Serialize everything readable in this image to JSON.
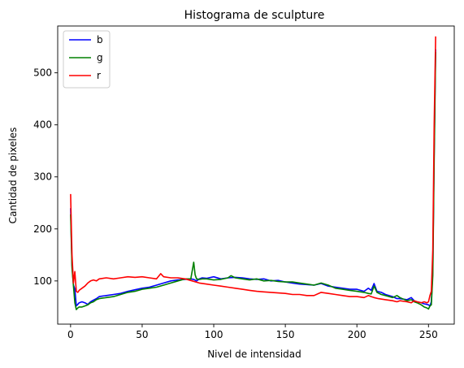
{
  "chart_data": {
    "type": "line",
    "title": "Histograma de sculpture",
    "xlabel": "Nivel de intensidad",
    "ylabel": "Cantidad de pixeles",
    "xlim": [
      -9,
      268
    ],
    "ylim": [
      17,
      590
    ],
    "xticks": [
      0,
      50,
      100,
      150,
      200,
      250
    ],
    "yticks": [
      100,
      200,
      300,
      400,
      500
    ],
    "grid": false,
    "legend_position": "top-left",
    "series": [
      {
        "name": "b",
        "color": "#0000ff",
        "points": [
          [
            0,
            240
          ],
          [
            1,
            130
          ],
          [
            2,
            92
          ],
          [
            3,
            85
          ],
          [
            4,
            52
          ],
          [
            5,
            55
          ],
          [
            6,
            58
          ],
          [
            8,
            60
          ],
          [
            10,
            58
          ],
          [
            12,
            55
          ],
          [
            14,
            60
          ],
          [
            16,
            63
          ],
          [
            18,
            66
          ],
          [
            20,
            70
          ],
          [
            25,
            72
          ],
          [
            30,
            74
          ],
          [
            35,
            76
          ],
          [
            40,
            80
          ],
          [
            45,
            83
          ],
          [
            50,
            86
          ],
          [
            55,
            88
          ],
          [
            60,
            92
          ],
          [
            65,
            96
          ],
          [
            70,
            100
          ],
          [
            75,
            102
          ],
          [
            80,
            103
          ],
          [
            84,
            104
          ],
          [
            86,
            103
          ],
          [
            88,
            100
          ],
          [
            90,
            104
          ],
          [
            92,
            106
          ],
          [
            95,
            105
          ],
          [
            100,
            108
          ],
          [
            105,
            104
          ],
          [
            110,
            106
          ],
          [
            115,
            107
          ],
          [
            120,
            106
          ],
          [
            125,
            104
          ],
          [
            130,
            103
          ],
          [
            135,
            104
          ],
          [
            140,
            100
          ],
          [
            145,
            101
          ],
          [
            150,
            98
          ],
          [
            155,
            96
          ],
          [
            160,
            94
          ],
          [
            165,
            93
          ],
          [
            170,
            92
          ],
          [
            175,
            95
          ],
          [
            180,
            90
          ],
          [
            185,
            88
          ],
          [
            190,
            86
          ],
          [
            195,
            84
          ],
          [
            200,
            84
          ],
          [
            205,
            80
          ],
          [
            208,
            86
          ],
          [
            210,
            82
          ],
          [
            212,
            95
          ],
          [
            214,
            80
          ],
          [
            217,
            78
          ],
          [
            220,
            74
          ],
          [
            225,
            70
          ],
          [
            228,
            66
          ],
          [
            230,
            66
          ],
          [
            235,
            64
          ],
          [
            238,
            68
          ],
          [
            240,
            62
          ],
          [
            242,
            60
          ],
          [
            245,
            58
          ],
          [
            247,
            56
          ],
          [
            249,
            55
          ],
          [
            250,
            54
          ],
          [
            251,
            52
          ],
          [
            252,
            60
          ],
          [
            253,
            120
          ],
          [
            254,
            350
          ],
          [
            255,
            545
          ]
        ]
      },
      {
        "name": "g",
        "color": "#008000",
        "points": [
          [
            0,
            228
          ],
          [
            1,
            125
          ],
          [
            2,
            90
          ],
          [
            3,
            58
          ],
          [
            4,
            45
          ],
          [
            5,
            48
          ],
          [
            6,
            50
          ],
          [
            8,
            50
          ],
          [
            10,
            52
          ],
          [
            12,
            54
          ],
          [
            14,
            58
          ],
          [
            16,
            60
          ],
          [
            18,
            64
          ],
          [
            20,
            66
          ],
          [
            25,
            68
          ],
          [
            30,
            70
          ],
          [
            35,
            74
          ],
          [
            40,
            78
          ],
          [
            45,
            80
          ],
          [
            50,
            84
          ],
          [
            55,
            86
          ],
          [
            60,
            88
          ],
          [
            65,
            92
          ],
          [
            70,
            96
          ],
          [
            75,
            100
          ],
          [
            80,
            104
          ],
          [
            84,
            104
          ],
          [
            86,
            136
          ],
          [
            87,
            112
          ],
          [
            88,
            104
          ],
          [
            90,
            103
          ],
          [
            92,
            104
          ],
          [
            95,
            104
          ],
          [
            100,
            102
          ],
          [
            105,
            103
          ],
          [
            110,
            106
          ],
          [
            112,
            110
          ],
          [
            115,
            106
          ],
          [
            120,
            104
          ],
          [
            125,
            102
          ],
          [
            130,
            104
          ],
          [
            135,
            100
          ],
          [
            140,
            101
          ],
          [
            145,
            99
          ],
          [
            150,
            98
          ],
          [
            155,
            98
          ],
          [
            160,
            96
          ],
          [
            165,
            94
          ],
          [
            170,
            92
          ],
          [
            175,
            96
          ],
          [
            180,
            92
          ],
          [
            185,
            86
          ],
          [
            190,
            84
          ],
          [
            195,
            82
          ],
          [
            200,
            80
          ],
          [
            205,
            78
          ],
          [
            208,
            76
          ],
          [
            210,
            75
          ],
          [
            212,
            90
          ],
          [
            214,
            78
          ],
          [
            217,
            74
          ],
          [
            220,
            72
          ],
          [
            225,
            68
          ],
          [
            228,
            72
          ],
          [
            230,
            68
          ],
          [
            235,
            62
          ],
          [
            238,
            64
          ],
          [
            240,
            60
          ],
          [
            242,
            58
          ],
          [
            245,
            54
          ],
          [
            247,
            50
          ],
          [
            249,
            48
          ],
          [
            250,
            46
          ],
          [
            251,
            52
          ],
          [
            252,
            54
          ],
          [
            253,
            110
          ],
          [
            254,
            330
          ],
          [
            255,
            540
          ]
        ]
      },
      {
        "name": "r",
        "color": "#ff0000",
        "points": [
          [
            0,
            267
          ],
          [
            1,
            150
          ],
          [
            2,
            96
          ],
          [
            3,
            118
          ],
          [
            4,
            80
          ],
          [
            5,
            78
          ],
          [
            6,
            82
          ],
          [
            8,
            86
          ],
          [
            10,
            90
          ],
          [
            12,
            96
          ],
          [
            14,
            100
          ],
          [
            16,
            102
          ],
          [
            18,
            100
          ],
          [
            20,
            104
          ],
          [
            25,
            106
          ],
          [
            30,
            104
          ],
          [
            35,
            106
          ],
          [
            40,
            108
          ],
          [
            45,
            107
          ],
          [
            50,
            108
          ],
          [
            55,
            106
          ],
          [
            60,
            104
          ],
          [
            63,
            114
          ],
          [
            65,
            108
          ],
          [
            70,
            106
          ],
          [
            75,
            106
          ],
          [
            80,
            104
          ],
          [
            85,
            100
          ],
          [
            90,
            96
          ],
          [
            95,
            94
          ],
          [
            100,
            92
          ],
          [
            105,
            90
          ],
          [
            110,
            88
          ],
          [
            115,
            86
          ],
          [
            120,
            84
          ],
          [
            125,
            82
          ],
          [
            130,
            80
          ],
          [
            135,
            79
          ],
          [
            140,
            78
          ],
          [
            145,
            77
          ],
          [
            150,
            76
          ],
          [
            155,
            74
          ],
          [
            160,
            74
          ],
          [
            165,
            72
          ],
          [
            170,
            72
          ],
          [
            175,
            78
          ],
          [
            180,
            76
          ],
          [
            185,
            74
          ],
          [
            190,
            72
          ],
          [
            195,
            70
          ],
          [
            200,
            70
          ],
          [
            205,
            68
          ],
          [
            208,
            72
          ],
          [
            210,
            70
          ],
          [
            212,
            68
          ],
          [
            215,
            66
          ],
          [
            220,
            64
          ],
          [
            225,
            62
          ],
          [
            228,
            60
          ],
          [
            230,
            62
          ],
          [
            235,
            60
          ],
          [
            238,
            58
          ],
          [
            240,
            62
          ],
          [
            242,
            60
          ],
          [
            245,
            58
          ],
          [
            247,
            60
          ],
          [
            249,
            58
          ],
          [
            250,
            60
          ],
          [
            251,
            72
          ],
          [
            252,
            80
          ],
          [
            253,
            160
          ],
          [
            254,
            400
          ],
          [
            255,
            570
          ]
        ]
      }
    ]
  }
}
